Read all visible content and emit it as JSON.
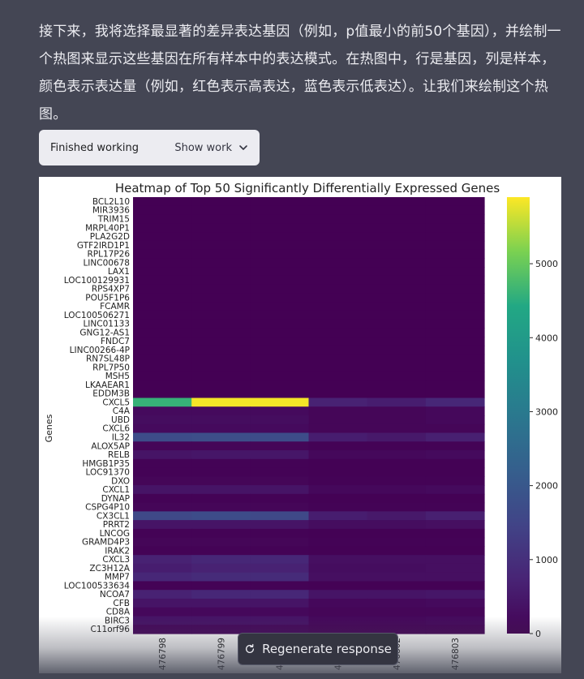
{
  "message": {
    "text": "接下来，我将选择最显著的差异表达基因（例如，p值最小的前50个基因），并绘制一个热图来显示这些基因在所有样本中的表达模式。在热图中，行是基因，列是样本，颜色表示表达量（例如，红色表示高表达，蓝色表示低表达）。让我们来绘制这个热图。"
  },
  "work_box": {
    "status": "Finished working",
    "show_work_label": "Show work"
  },
  "chart_data": {
    "type": "heatmap",
    "title": "Heatmap of Top 50 Significantly Differentially Expressed Genes",
    "ylabel": "Genes",
    "colormap": "viridis",
    "colorbar_range": [
      0,
      5900
    ],
    "colorbar_ticks": [
      0,
      1000,
      2000,
      3000,
      4000,
      5000
    ],
    "genes": [
      "BCL2L10",
      "MIR3936",
      "TRIM15",
      "MRPL40P1",
      "PLA2G2D",
      "GTF2IRD1P1",
      "RPL17P26",
      "LINC00678",
      "LAX1",
      "LOC100129931",
      "RPS4XP7",
      "POU5F1P6",
      "FCAMR",
      "LOC100506271",
      "LINC01133",
      "GNG12-AS1",
      "FNDC7",
      "LINC00266-4P",
      "RN7SL48P",
      "RPL7P50",
      "MSH5",
      "LKAAEAR1",
      "EDDM3B",
      "CXCL5",
      "C4A",
      "UBD",
      "CXCL6",
      "IL32",
      "ALOX5AP",
      "RELB",
      "HMGB1P35",
      "LOC91370",
      "DXO",
      "CXCL1",
      "DYNAP",
      "CSPG4P10",
      "CX3CL1",
      "PRRT2",
      "LNCOG",
      "GRAMD4P3",
      "IRAK2",
      "CXCL3",
      "ZC3H12A",
      "MMP7",
      "LOC100533634",
      "NCOA7",
      "CFB",
      "CD8A",
      "BIRC3",
      "C11orf96"
    ],
    "sample_labels": [
      "476798",
      "476799",
      "476800",
      "476801",
      "476802",
      "476803"
    ],
    "values": [
      [
        0,
        0,
        0,
        0,
        0,
        0
      ],
      [
        0,
        0,
        0,
        0,
        0,
        0
      ],
      [
        0,
        0,
        0,
        0,
        0,
        0
      ],
      [
        0,
        0,
        0,
        0,
        0,
        0
      ],
      [
        0,
        0,
        0,
        0,
        0,
        0
      ],
      [
        0,
        0,
        0,
        0,
        0,
        0
      ],
      [
        0,
        0,
        0,
        0,
        0,
        0
      ],
      [
        0,
        0,
        0,
        0,
        0,
        0
      ],
      [
        0,
        0,
        0,
        0,
        0,
        0
      ],
      [
        0,
        0,
        0,
        0,
        0,
        0
      ],
      [
        0,
        0,
        0,
        0,
        0,
        0
      ],
      [
        0,
        0,
        0,
        0,
        0,
        0
      ],
      [
        0,
        0,
        0,
        0,
        0,
        0
      ],
      [
        0,
        0,
        0,
        0,
        0,
        0
      ],
      [
        0,
        0,
        0,
        0,
        0,
        0
      ],
      [
        0,
        0,
        0,
        0,
        0,
        0
      ],
      [
        0,
        0,
        0,
        0,
        0,
        0
      ],
      [
        0,
        0,
        0,
        0,
        0,
        0
      ],
      [
        0,
        0,
        0,
        0,
        0,
        0
      ],
      [
        0,
        0,
        0,
        0,
        0,
        0
      ],
      [
        0,
        0,
        0,
        0,
        0,
        0
      ],
      [
        0,
        0,
        0,
        0,
        0,
        0
      ],
      [
        0,
        0,
        0,
        0,
        0,
        0
      ],
      [
        4600,
        5850,
        5850,
        700,
        600,
        800
      ],
      [
        200,
        200,
        200,
        100,
        100,
        150
      ],
      [
        250,
        250,
        250,
        100,
        100,
        150
      ],
      [
        200,
        200,
        200,
        100,
        100,
        100
      ],
      [
        1700,
        1750,
        1700,
        600,
        500,
        650
      ],
      [
        100,
        100,
        100,
        50,
        50,
        50
      ],
      [
        400,
        450,
        450,
        150,
        150,
        200
      ],
      [
        50,
        50,
        50,
        30,
        30,
        30
      ],
      [
        50,
        50,
        50,
        30,
        30,
        30
      ],
      [
        100,
        100,
        100,
        50,
        50,
        50
      ],
      [
        400,
        400,
        400,
        150,
        150,
        200
      ],
      [
        50,
        50,
        50,
        30,
        30,
        30
      ],
      [
        100,
        100,
        100,
        50,
        50,
        50
      ],
      [
        1600,
        1700,
        1600,
        600,
        500,
        650
      ],
      [
        400,
        400,
        400,
        250,
        250,
        300
      ],
      [
        50,
        50,
        50,
        30,
        30,
        30
      ],
      [
        100,
        100,
        100,
        50,
        50,
        50
      ],
      [
        50,
        50,
        50,
        30,
        30,
        30
      ],
      [
        700,
        800,
        800,
        300,
        300,
        300
      ],
      [
        600,
        700,
        700,
        250,
        250,
        300
      ],
      [
        800,
        900,
        900,
        300,
        300,
        300
      ],
      [
        50,
        50,
        50,
        30,
        30,
        30
      ],
      [
        700,
        800,
        800,
        400,
        400,
        450
      ],
      [
        400,
        400,
        400,
        150,
        150,
        200
      ],
      [
        150,
        150,
        150,
        100,
        100,
        100
      ],
      [
        400,
        400,
        400,
        150,
        150,
        200
      ],
      [
        150,
        150,
        150,
        100,
        100,
        100
      ]
    ]
  },
  "regenerate": {
    "label": "Regenerate response"
  }
}
